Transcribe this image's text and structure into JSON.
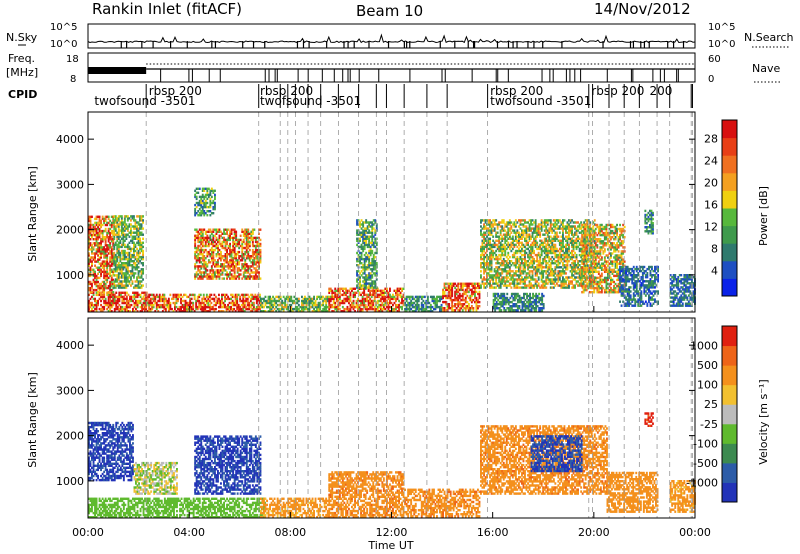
{
  "header": {
    "title": "Rankin Inlet (fitACF)",
    "beam": "Beam 10",
    "date": "14/Nov/2012"
  },
  "strip_labels": {
    "nsky": "N.Sky",
    "nsearch": "N.Search",
    "freq_line1": "Freq.",
    "freq_line2": "[MHz]",
    "nave": "Nave",
    "cpid": "CPID",
    "nsky_ticks": [
      "10^5",
      "10^0"
    ],
    "nsearch_ticks": [
      "10^5",
      "10^0"
    ],
    "freq_ticks": [
      "18",
      "8"
    ],
    "nave_ticks": [
      "60",
      "0"
    ]
  },
  "cpid_labels": [
    {
      "text": "twofsound -3501",
      "row": 2,
      "time_h": 0.25
    },
    {
      "text": "rbsp 200",
      "row": 1,
      "time_h": 2.4
    },
    {
      "text": "rbsp 200",
      "row": 1,
      "time_h": 6.8
    },
    {
      "text": "twofsound -3501",
      "row": 2,
      "time_h": 6.8
    },
    {
      "text": "rbsp 200",
      "row": 1,
      "time_h": 15.9
    },
    {
      "text": "twofsound -3501",
      "row": 2,
      "time_h": 15.9
    },
    {
      "text": "rbsp 200",
      "row": 1,
      "time_h": 19.9
    },
    {
      "text": "200",
      "row": 1,
      "time_h": 22.2
    }
  ],
  "cpid_change_times_h": [
    2.3,
    6.75,
    7.6,
    7.9,
    8.2,
    8.7,
    9.2,
    9.9,
    10.7,
    11.4,
    11.8,
    12.5,
    13.4,
    14.2,
    15.8,
    19.8,
    19.95,
    20.6,
    21.2,
    21.8,
    22.5,
    23.0,
    23.85,
    23.9
  ],
  "chart_data": [
    {
      "type": "heatmap",
      "name": "power",
      "ylabel": "Slant Range [km]",
      "xlabel": "Time UT",
      "xlim_h": [
        0,
        24
      ],
      "ylim": [
        180,
        4600
      ],
      "x_ticks": [
        "00:00",
        "04:00",
        "08:00",
        "12:00",
        "16:00",
        "20:00",
        "00:00"
      ],
      "y_ticks": [
        1000,
        2000,
        3000,
        4000
      ],
      "colorbar": {
        "label": "Power [dB]",
        "ticks": [
          4,
          8,
          12,
          16,
          20,
          24,
          28
        ],
        "colors": [
          "#0a22e8",
          "#1e4fc2",
          "#2f7a6e",
          "#3f9a4c",
          "#57b83c",
          "#f0d010",
          "#f4a020",
          "#f07020",
          "#e83f16",
          "#d81010"
        ]
      },
      "regions": [
        {
          "t": [
            0.0,
            2.3
          ],
          "r": [
            180,
            600
          ],
          "v": 26
        },
        {
          "t": [
            0.0,
            1.0
          ],
          "r": [
            600,
            2300
          ],
          "v": 23
        },
        {
          "t": [
            1.0,
            2.2
          ],
          "r": [
            700,
            2300
          ],
          "v": 14
        },
        {
          "t": [
            2.2,
            6.8
          ],
          "r": [
            180,
            560
          ],
          "v": 26
        },
        {
          "t": [
            4.2,
            6.8
          ],
          "r": [
            900,
            2000
          ],
          "v": 22
        },
        {
          "t": [
            4.2,
            5.0
          ],
          "r": [
            2300,
            2900
          ],
          "v": 12
        },
        {
          "t": [
            6.8,
            9.5
          ],
          "r": [
            180,
            500
          ],
          "v": 14
        },
        {
          "t": [
            9.5,
            12.5
          ],
          "r": [
            180,
            700
          ],
          "v": 24
        },
        {
          "t": [
            10.6,
            11.4
          ],
          "r": [
            700,
            2200
          ],
          "v": 12
        },
        {
          "t": [
            12.5,
            14.0
          ],
          "r": [
            180,
            500
          ],
          "v": 10
        },
        {
          "t": [
            14.0,
            15.5
          ],
          "r": [
            200,
            800
          ],
          "v": 26
        },
        {
          "t": [
            15.5,
            20.0
          ],
          "r": [
            700,
            2200
          ],
          "v": 16
        },
        {
          "t": [
            16.0,
            18.0
          ],
          "r": [
            200,
            600
          ],
          "v": 10
        },
        {
          "t": [
            19.5,
            21.2
          ],
          "r": [
            600,
            2100
          ],
          "v": 18
        },
        {
          "t": [
            21.0,
            22.5
          ],
          "r": [
            300,
            1200
          ],
          "v": 8
        },
        {
          "t": [
            22.0,
            22.3
          ],
          "r": [
            1900,
            2400
          ],
          "v": 11
        },
        {
          "t": [
            23.0,
            24.0
          ],
          "r": [
            300,
            1000
          ],
          "v": 8
        }
      ]
    },
    {
      "type": "heatmap",
      "name": "velocity",
      "ylabel": "Slant Range [km]",
      "xlabel": "Time UT",
      "xlim_h": [
        0,
        24
      ],
      "ylim": [
        180,
        4600
      ],
      "x_ticks": [
        "00:00",
        "04:00",
        "08:00",
        "12:00",
        "16:00",
        "20:00",
        "00:00"
      ],
      "y_ticks": [
        1000,
        2000,
        3000,
        4000
      ],
      "colorbar": {
        "label": "Velocity [m s⁻¹]",
        "ticks": [
          1000,
          500,
          100,
          25,
          -25,
          -100,
          -500,
          -1000
        ],
        "colors": [
          "#2233b8",
          "#2c5ca8",
          "#3c8a50",
          "#5fba2e",
          "#bcbcbc",
          "#f2c030",
          "#f4901c",
          "#ee6418",
          "#e02010"
        ]
      },
      "regions": [
        {
          "t": [
            0.0,
            1.8
          ],
          "r": [
            1000,
            2300
          ],
          "v": 900
        },
        {
          "t": [
            1.8,
            3.5
          ],
          "r": [
            700,
            1400
          ],
          "v": 0
        },
        {
          "t": [
            0.0,
            7.0
          ],
          "r": [
            180,
            600
          ],
          "v": 60
        },
        {
          "t": [
            4.2,
            6.8
          ],
          "r": [
            700,
            2000
          ],
          "v": 900
        },
        {
          "t": [
            6.8,
            9.5
          ],
          "r": [
            180,
            600
          ],
          "v": -150
        },
        {
          "t": [
            9.5,
            12.5
          ],
          "r": [
            180,
            1200
          ],
          "v": -300
        },
        {
          "t": [
            12.5,
            15.5
          ],
          "r": [
            200,
            800
          ],
          "v": -300
        },
        {
          "t": [
            15.5,
            20.5
          ],
          "r": [
            700,
            2200
          ],
          "v": -300
        },
        {
          "t": [
            17.5,
            19.5
          ],
          "r": [
            1200,
            2000
          ],
          "v": 800
        },
        {
          "t": [
            20.5,
            22.5
          ],
          "r": [
            300,
            1200
          ],
          "v": -200
        },
        {
          "t": [
            22.0,
            22.3
          ],
          "r": [
            2200,
            2500
          ],
          "v": -1100
        },
        {
          "t": [
            23.0,
            24.0
          ],
          "r": [
            300,
            1000
          ],
          "v": -150
        }
      ]
    }
  ]
}
